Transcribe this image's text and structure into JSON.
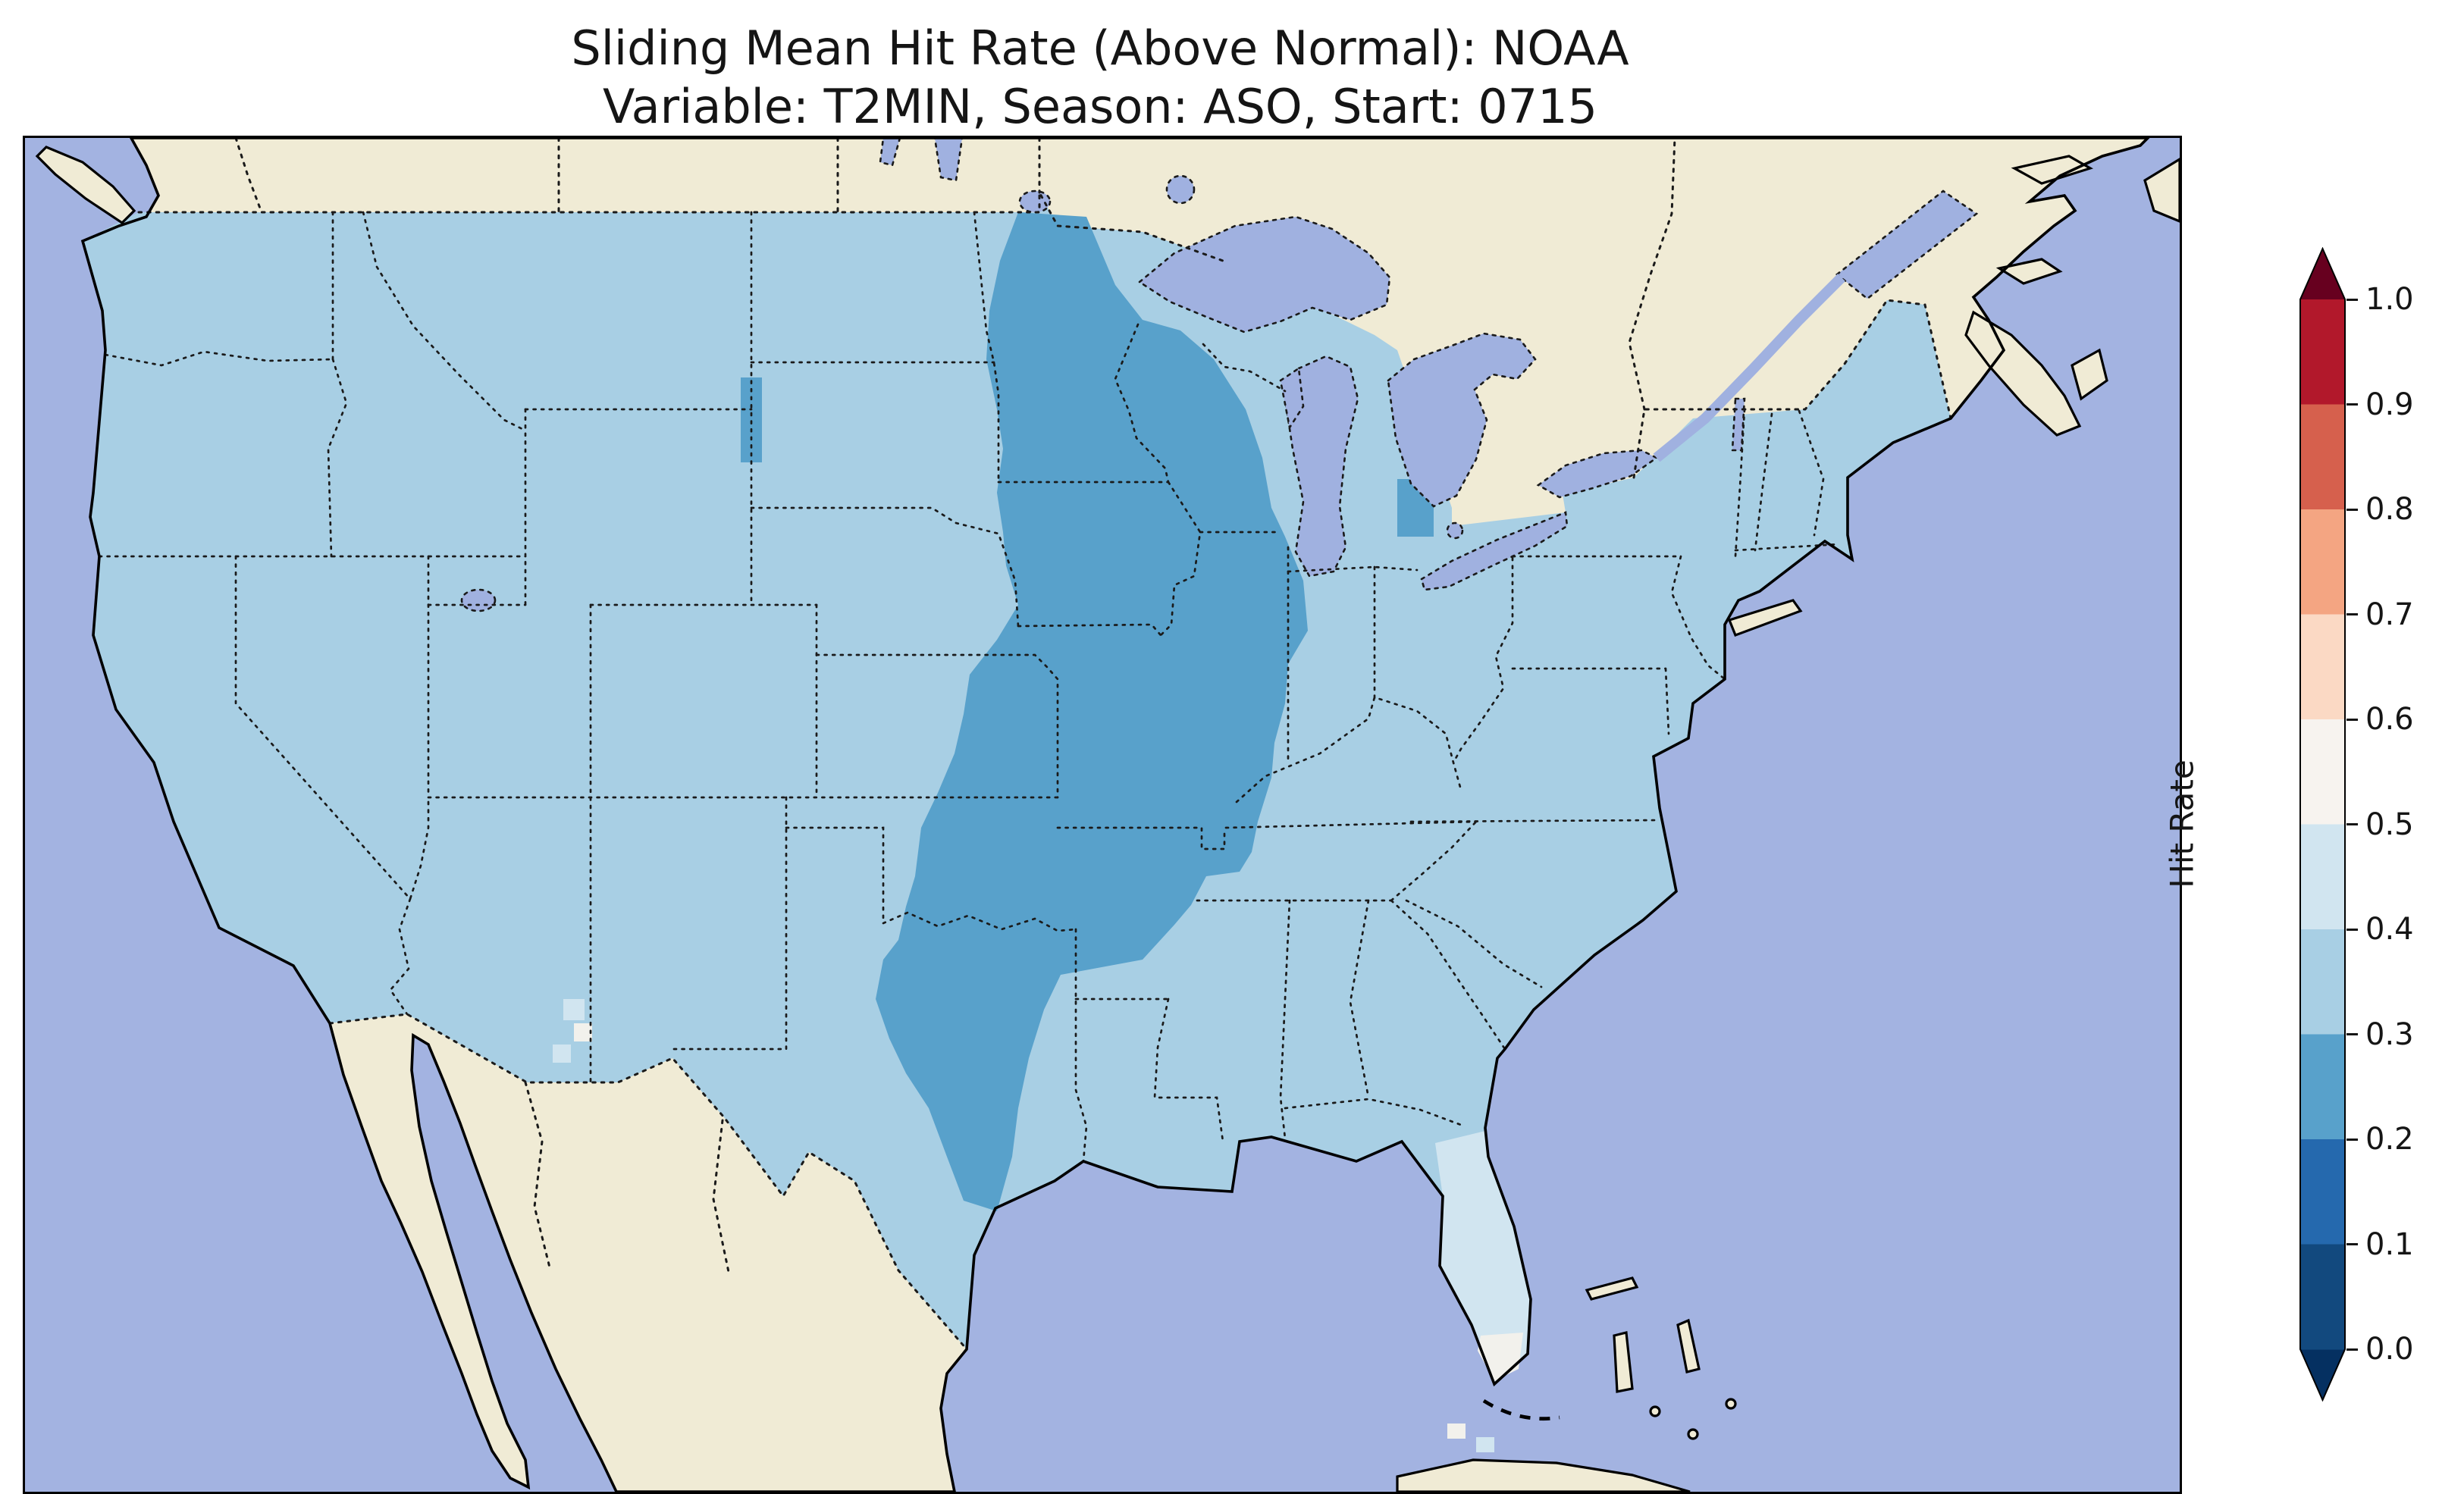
{
  "title": {
    "line1": "Sliding Mean Hit Rate (Above Normal): NOAA",
    "line2": "Variable: T2MIN, Season: ASO, Start: 0715"
  },
  "colorbar": {
    "label": "Hit Rate",
    "ticks": [
      "1.0",
      "0.9",
      "0.8",
      "0.7",
      "0.6",
      "0.5",
      "0.4",
      "0.3",
      "0.2",
      "0.1",
      "0.0"
    ],
    "over_color": "#67001f",
    "under_color": "#053061",
    "segments_top_to_bottom": [
      {
        "range": "0.9-1.0",
        "color": "#b2182b"
      },
      {
        "range": "0.8-0.9",
        "color": "#d6604d"
      },
      {
        "range": "0.7-0.8",
        "color": "#f4a582"
      },
      {
        "range": "0.6-0.7",
        "color": "#fbd9c4"
      },
      {
        "range": "0.5-0.6",
        "color": "#f7f3ef"
      },
      {
        "range": "0.4-0.5",
        "color": "#d1e5f0"
      },
      {
        "range": "0.3-0.4",
        "color": "#a8cfe4"
      },
      {
        "range": "0.2-0.3",
        "color": "#58a1cb"
      },
      {
        "range": "0.1-0.2",
        "color": "#2569ae"
      },
      {
        "range": "0.0-0.1",
        "color": "#12497e"
      }
    ]
  },
  "colors": {
    "ocean": "#a3b3e1",
    "lake": "#a0b1e0",
    "land": "#f0ebd5",
    "us_03_04": "#a8cfe4",
    "us_02_03": "#58a1cb",
    "us_04_05": "#d1e5f0",
    "us_05_06": "#f2f1ec",
    "coastline": "#000000",
    "boundary": "#1a1a1a"
  },
  "chart_data": {
    "type": "heatmap",
    "title": "Sliding Mean Hit Rate (Above Normal): NOAA",
    "subtitle": "Variable: T2MIN, Season: ASO, Start: 0715",
    "region": "Continental United States with surrounding Canada, Mexico, Atlantic and Pacific",
    "variable": "T2MIN",
    "season": "ASO",
    "start": "0715",
    "source": "NOAA",
    "colorbar_label": "Hit Rate",
    "colorbar_ticks": [
      0.0,
      0.1,
      0.2,
      0.3,
      0.4,
      0.5,
      0.6,
      0.7,
      0.8,
      0.9,
      1.0
    ],
    "colormap": "RdBu_r, discrete 0.1 bins, extended triangles below 0.0 and above 1.0",
    "observed_values_estimated": {
      "most_of_conus": "0.3-0.4",
      "upper_midwest_and_central_plains_corridor_MN_WI_IA_IL_MO_eKS_OK_nTX_AR_wKY_wTN": "0.2-0.3",
      "small_patch_eastern_michigan": "0.2-0.3",
      "small_strip_western_north_dakota": "0.2-0.3",
      "south_florida_peninsula": "0.4-0.5",
      "southern_florida_tip_cells": "0.5-0.6",
      "scattered_cells_arizona_new_mexico_border": "0.4-0.6"
    },
    "legend_position": "right vertical colorbar",
    "grid": "off",
    "basemap": "cream land, periwinkle ocean and lakes, solid coastlines, dotted state and national borders"
  }
}
